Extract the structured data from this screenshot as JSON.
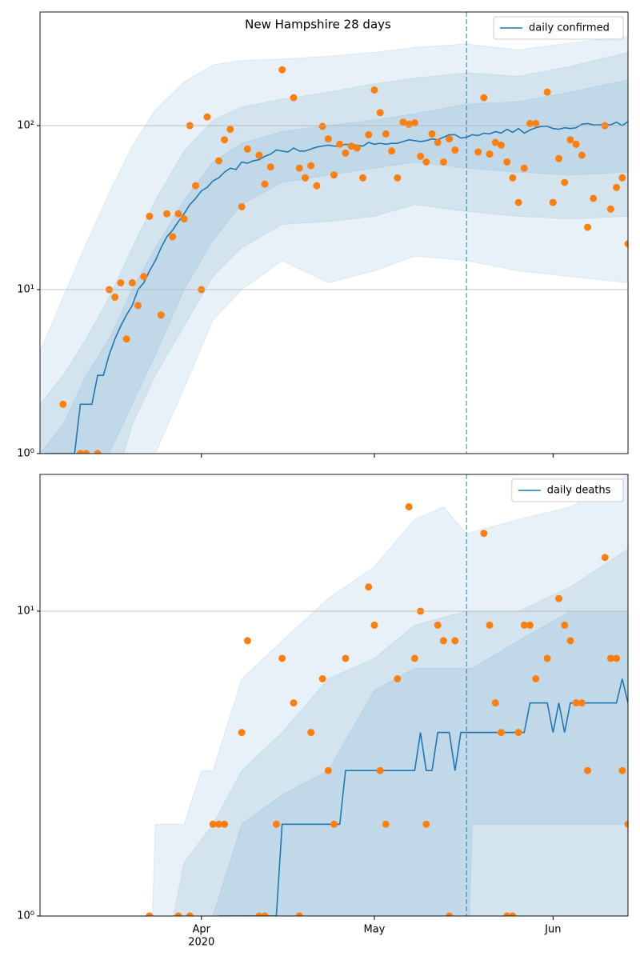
{
  "chart_data": [
    {
      "type": "line",
      "title": "New Hampshire 28 days",
      "log_y": true,
      "grid": true,
      "legend": "upper right",
      "xlim": [
        0,
        102
      ],
      "ylim": [
        1,
        493
      ],
      "yticks": [
        {
          "value": 1,
          "label": "10⁰"
        },
        {
          "value": 10,
          "label": "10¹"
        },
        {
          "value": 100,
          "label": "10²"
        }
      ],
      "series": [
        {
          "name": "daily confirmed",
          "color": "#1f77b4",
          "x": [
            1,
            2,
            3,
            4,
            5,
            6,
            7,
            8,
            9,
            10,
            11,
            12,
            13,
            14,
            15,
            16,
            17,
            18,
            19,
            20,
            21,
            22,
            23,
            24,
            25,
            26,
            27,
            28,
            29,
            30,
            31,
            32,
            33,
            34,
            35,
            36,
            37,
            38,
            39,
            40,
            41,
            42,
            43,
            44,
            45,
            46,
            47,
            48,
            49,
            50,
            51,
            52,
            53,
            54,
            55,
            56,
            57,
            58,
            59,
            60,
            61,
            62,
            63,
            64,
            65,
            66,
            67,
            68,
            69,
            70,
            71,
            72,
            73,
            74,
            75,
            76,
            77,
            78,
            79,
            80,
            81,
            82,
            83,
            84,
            85,
            86,
            87,
            88,
            89,
            90,
            91,
            92,
            93,
            94,
            95,
            96,
            97,
            98,
            99,
            100,
            101,
            102
          ],
          "values": [
            1,
            1,
            1,
            1,
            1,
            1,
            2,
            2,
            2,
            3,
            3,
            4,
            5,
            6,
            7,
            8,
            10,
            11,
            13,
            15,
            18,
            21,
            23,
            26,
            29,
            33,
            36,
            40,
            42,
            46,
            48,
            52,
            55,
            54,
            60,
            59,
            61,
            62,
            65,
            67,
            71,
            70,
            69,
            73,
            70,
            70,
            72,
            74,
            75,
            76,
            75,
            75,
            77,
            76,
            76,
            75,
            79,
            77,
            78,
            77,
            78,
            78,
            80,
            82,
            81,
            80,
            81,
            83,
            82,
            85,
            88,
            88,
            84,
            85,
            88,
            87,
            90,
            89,
            92,
            90,
            95,
            91,
            96,
            90,
            94,
            97,
            99,
            99,
            96,
            95,
            97,
            96,
            97,
            102,
            103,
            101,
            101,
            102,
            101,
            105,
            100,
            106
          ]
        }
      ],
      "observed": {
        "color": "#ff7f0e",
        "x": [
          4,
          7,
          8,
          10,
          12,
          13,
          14,
          15,
          16,
          17,
          18,
          19,
          21,
          22,
          23,
          24,
          25,
          26,
          27,
          28,
          29,
          31,
          32,
          33,
          35,
          36,
          38,
          39,
          40,
          42,
          44,
          45,
          46,
          47,
          48,
          49,
          50,
          51,
          52,
          53,
          54,
          55,
          56,
          57,
          58,
          59,
          60,
          61,
          62,
          63,
          64,
          65,
          66,
          67,
          68,
          69,
          70,
          71,
          72,
          76,
          77,
          78,
          79,
          80,
          81,
          82,
          83,
          84,
          85,
          86,
          88,
          89,
          90,
          91,
          92,
          93,
          94,
          95,
          96,
          98,
          99,
          100,
          101,
          102
        ],
        "values": [
          2,
          1,
          1,
          1,
          10,
          9,
          11,
          5,
          11,
          8,
          12,
          28,
          7,
          29,
          21,
          29,
          27,
          100,
          43,
          10,
          113,
          61,
          82,
          95,
          32,
          72,
          66,
          44,
          56,
          219,
          148,
          55,
          48,
          57,
          43,
          99,
          83,
          50,
          77,
          68,
          75,
          73,
          48,
          88,
          165,
          120,
          89,
          70,
          48,
          105,
          102,
          104,
          65,
          60,
          89,
          79,
          60,
          83,
          71,
          69,
          148,
          67,
          79,
          76,
          60,
          48,
          34,
          55,
          103,
          103,
          160,
          34,
          63,
          45,
          82,
          77,
          66,
          24,
          36,
          100,
          31,
          42,
          48,
          19
        ]
      },
      "bands": [
        {
          "x": [
            0,
            4,
            8,
            12,
            16,
            20,
            25,
            30,
            35,
            42,
            50,
            58,
            65,
            74,
            83,
            92,
            102
          ],
          "lower": [
            0.5,
            0.5,
            0.5,
            0.5,
            0.5,
            1,
            2.5,
            6.5,
            10,
            15,
            11,
            13,
            16,
            15,
            13,
            12,
            11
          ],
          "upper": [
            4.2,
            9,
            19,
            39,
            75,
            125,
            185,
            235,
            250,
            255,
            265,
            280,
            300,
            315,
            290,
            320,
            350
          ]
        },
        {
          "x": [
            0,
            4,
            8,
            12,
            16,
            20,
            25,
            30,
            35,
            42,
            50,
            58,
            65,
            74,
            83,
            92,
            102
          ],
          "lower": [
            0.5,
            0.5,
            0.5,
            0.5,
            1.5,
            3,
            6,
            12,
            18,
            25,
            26,
            28,
            33,
            30,
            28,
            27,
            28
          ],
          "upper": [
            2,
            3,
            5,
            9,
            18,
            35,
            70,
            108,
            130,
            145,
            160,
            180,
            195,
            210,
            200,
            230,
            280
          ]
        },
        {
          "x": [
            0,
            4,
            8,
            12,
            16,
            20,
            25,
            30,
            35,
            42,
            50,
            58,
            65,
            74,
            83,
            92,
            102
          ],
          "lower": [
            0.5,
            0.5,
            0.5,
            1,
            2,
            4,
            10,
            20,
            33,
            45,
            50,
            55,
            60,
            55,
            52,
            50,
            52
          ],
          "upper": [
            1,
            1.5,
            3,
            5,
            10,
            18,
            35,
            60,
            78,
            92,
            100,
            108,
            118,
            135,
            140,
            160,
            190
          ]
        }
      ],
      "vline": {
        "x": 74,
        "color": "#1f77b4"
      }
    },
    {
      "type": "line",
      "log_y": true,
      "grid": true,
      "legend": "upper right",
      "xlim": [
        0,
        102
      ],
      "ylim": [
        1,
        28.1
      ],
      "xticks": [
        {
          "value": 28,
          "label": "Apr"
        },
        {
          "value": 58,
          "label": "May"
        },
        {
          "value": 89,
          "label": "Jun"
        }
      ],
      "x_year": "2020",
      "yticks": [
        {
          "value": 1,
          "label": "10⁰"
        },
        {
          "value": 10,
          "label": "10¹"
        }
      ],
      "series": [
        {
          "name": "daily deaths",
          "color": "#1f77b4",
          "x": [
            31,
            32,
            33,
            34,
            35,
            36,
            37,
            38,
            39,
            40,
            41,
            42,
            43,
            44,
            45,
            46,
            47,
            48,
            49,
            50,
            51,
            52,
            53,
            54,
            55,
            56,
            57,
            58,
            59,
            60,
            61,
            62,
            63,
            64,
            65,
            66,
            67,
            68,
            69,
            70,
            71,
            72,
            73,
            74,
            75,
            76,
            77,
            78,
            79,
            80,
            81,
            82,
            83,
            84,
            85,
            86,
            87,
            88,
            89,
            90,
            91,
            92,
            93,
            94,
            95,
            96,
            97,
            98,
            99,
            100,
            101,
            102
          ],
          "values": [
            1,
            1,
            1,
            1,
            1,
            1,
            1,
            1,
            1,
            1,
            1,
            2,
            2,
            2,
            2,
            2,
            2,
            2,
            2,
            2,
            2,
            2,
            3,
            3,
            3,
            3,
            3,
            3,
            3,
            3,
            3,
            3,
            3,
            3,
            3,
            4,
            3,
            3,
            4,
            4,
            4,
            3,
            4,
            4,
            4,
            4,
            4,
            4,
            4,
            4,
            4,
            4,
            4,
            4,
            5,
            5,
            5,
            5,
            4,
            5,
            4,
            5,
            5,
            5,
            5,
            5,
            5,
            5,
            5,
            5,
            6,
            5
          ]
        }
      ],
      "observed": {
        "color": "#ff7f0e",
        "x": [
          19,
          24,
          26,
          30,
          31,
          32,
          35,
          36,
          38,
          39,
          41,
          42,
          44,
          45,
          47,
          49,
          50,
          51,
          53,
          57,
          58,
          59,
          60,
          62,
          64,
          65,
          66,
          67,
          69,
          70,
          71,
          72,
          77,
          78,
          79,
          80,
          81,
          82,
          83,
          84,
          85,
          86,
          88,
          90,
          91,
          92,
          93,
          94,
          95,
          98,
          99,
          100,
          101,
          102
        ],
        "values": [
          1,
          1,
          1,
          2,
          2,
          2,
          4,
          8,
          1,
          1,
          2,
          7,
          5,
          1,
          4,
          6,
          3,
          2,
          7,
          12,
          9,
          3,
          2,
          6,
          22,
          7,
          10,
          2,
          9,
          8,
          1,
          8,
          18,
          9,
          5,
          4,
          1,
          1,
          4,
          9,
          9,
          6,
          7,
          11,
          9,
          8,
          5,
          5,
          3,
          15,
          7,
          7,
          3,
          2
        ]
      },
      "bands": [
        {
          "x": [
            0,
            19,
            20,
            25,
            28,
            30,
            35,
            42,
            50,
            58,
            65,
            70,
            74,
            83,
            92,
            102
          ],
          "lower": [
            0.5,
            0.5,
            0.5,
            0.5,
            0.5,
            0.5,
            0.5,
            0.5,
            0.5,
            0.5,
            0.5,
            0.5,
            0.5,
            0.5,
            0.5,
            0.5
          ],
          "upper": [
            0.5,
            0.5,
            2,
            2,
            3,
            3,
            6,
            8,
            11,
            14,
            20,
            22,
            18,
            20,
            22,
            28
          ]
        },
        {
          "x": [
            0,
            19,
            20,
            25,
            30,
            35,
            42,
            50,
            58,
            65,
            74,
            83,
            92,
            102
          ],
          "lower": [
            0.5,
            0.5,
            0.5,
            0.5,
            0.5,
            0.5,
            0.5,
            0.5,
            0.5,
            0.5,
            0.5,
            0.5,
            0.5,
            0.5
          ],
          "upper": [
            0.5,
            0.5,
            0.5,
            1.5,
            2,
            3,
            4,
            6,
            7,
            9,
            10,
            10,
            12,
            16
          ]
        },
        {
          "x": [
            0,
            29,
            30,
            35,
            42,
            50,
            58,
            65,
            74,
            75,
            83,
            92,
            102
          ],
          "lower": [
            0.5,
            0.5,
            0.5,
            0.5,
            0.5,
            0.5,
            0.5,
            0.5,
            0.5,
            2,
            2,
            2,
            2
          ],
          "upper": [
            0.5,
            0.5,
            1,
            2,
            2.5,
            3,
            5.5,
            6.5,
            6.5,
            6.5,
            8,
            10,
            10
          ]
        }
      ],
      "vline": {
        "x": 74,
        "color": "#1f77b4"
      }
    }
  ]
}
